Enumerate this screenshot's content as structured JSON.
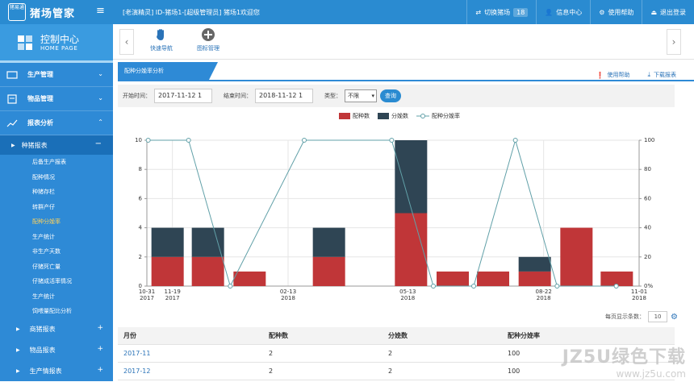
{
  "topbar": {
    "logo_text": "猪易通",
    "brand": "猪场管家",
    "welcome": "[老演精灵] ID-猪场1-[超级管理员] 猪场1欢迎您",
    "nav": [
      {
        "label": "切换猪场",
        "badge": "18",
        "icon": "switch-icon"
      },
      {
        "label": "信息中心",
        "icon": "user-icon"
      },
      {
        "label": "使用帮助",
        "icon": "help-icon"
      },
      {
        "label": "退出登录",
        "icon": "logout-icon"
      }
    ]
  },
  "sidebar": {
    "home_title": "控制中心",
    "home_subtitle": "HOME PAGE",
    "sections": [
      {
        "label": "生产管理",
        "icon": "production-icon"
      },
      {
        "label": "物品管理",
        "icon": "goods-icon"
      },
      {
        "label": "报表分析",
        "icon": "report-icon"
      }
    ],
    "active_sub": "种猪报表",
    "leaves": [
      "后备生产报表",
      "配种情况",
      "种猪存栏",
      "转群产仔",
      "配种分娩率",
      "生产统计",
      "非生产天数",
      "仔猪死亡量",
      "仔猪成活率情况",
      "生产统计",
      "饲喂量配比分析"
    ],
    "active_leaf_index": 4,
    "collapsed": [
      "商猪报表",
      "物品报表",
      "生产情报表"
    ]
  },
  "toolbar": {
    "tools": [
      {
        "label": "快速导航",
        "icon": "hand-icon"
      },
      {
        "label": "图标管理",
        "icon": "plus-circle-icon"
      }
    ]
  },
  "tab": {
    "label": "配种分娩率分析"
  },
  "links": {
    "help": "使用帮助",
    "download": "下载报表"
  },
  "filter": {
    "start_label": "开始时间：",
    "start_value": "2017-11-12 1",
    "end_label": "结束时间：",
    "end_value": "2018-11-12 1",
    "type_label": "类型：",
    "type_value": "不限",
    "search_label": "查询"
  },
  "legend": {
    "items": [
      "配种数",
      "分娩数",
      "配种分娩率"
    ]
  },
  "colors": {
    "red": "#c03638",
    "dark": "#2f4554",
    "line": "#61a0a8",
    "accent": "#2a8bd1"
  },
  "chart_data": {
    "type": "bar",
    "stacked": true,
    "x_ticks": [
      "10-31\n2017",
      "11-19\n2017",
      "02-13\n2018",
      "05-13\n2018",
      "08-22\n2018",
      "11-01\n2018"
    ],
    "bars": [
      {
        "date": "2017-11",
        "breed": 2,
        "farrow": 2
      },
      {
        "date": "2017-12",
        "breed": 2,
        "farrow": 2
      },
      {
        "date": "2018-01",
        "breed": 1,
        "farrow": 0
      },
      {
        "date": "2018-03",
        "breed": 2,
        "farrow": 2
      },
      {
        "date": "2018-05",
        "breed": 5,
        "farrow": 5
      },
      {
        "date": "2018-06",
        "breed": 1,
        "farrow": 0
      },
      {
        "date": "2018-07",
        "breed": 1,
        "farrow": 0
      },
      {
        "date": "2018-08",
        "breed": 1,
        "farrow": 1
      },
      {
        "date": "2018-09",
        "breed": 4,
        "farrow": 0
      },
      {
        "date": "2018-10",
        "breed": 1,
        "farrow": 0
      }
    ],
    "rate_line": [
      {
        "date": "2017-11-01",
        "rate": 100
      },
      {
        "date": "2017-12-01",
        "rate": 100
      },
      {
        "date": "2018-01-01",
        "rate": 0
      },
      {
        "date": "2018-02-25",
        "rate": 100
      },
      {
        "date": "2018-05-01",
        "rate": 100
      },
      {
        "date": "2018-06-01",
        "rate": 0
      },
      {
        "date": "2018-07-01",
        "rate": 0
      },
      {
        "date": "2018-08-01",
        "rate": 100
      },
      {
        "date": "2018-09-01",
        "rate": 0
      },
      {
        "date": "2018-10-15",
        "rate": 0
      }
    ],
    "y_left": {
      "min": 0,
      "max": 10,
      "ticks": [
        0,
        2,
        4,
        6,
        8,
        10
      ]
    },
    "y_right": {
      "min": 0,
      "max": 100,
      "ticks": [
        0,
        20,
        40,
        60,
        80,
        100
      ],
      "label": "0%"
    }
  },
  "pager": {
    "label": "每页显示条数：",
    "size": "10"
  },
  "table": {
    "headers": [
      "月份",
      "配种数",
      "分娩数",
      "配种分娩率"
    ],
    "rows": [
      [
        "2017-11",
        "2",
        "2",
        "100"
      ],
      [
        "2017-12",
        "2",
        "2",
        "100"
      ]
    ]
  },
  "watermark": {
    "line1": "JZ5U绿色下载",
    "line2": "www.jz5u.com"
  }
}
